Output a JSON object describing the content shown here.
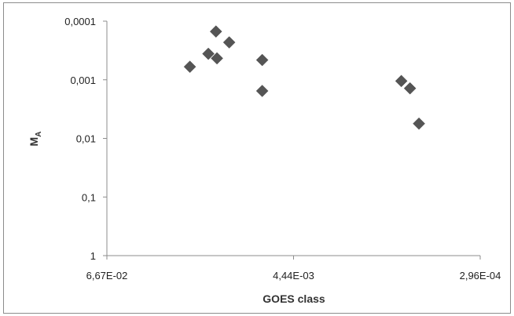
{
  "chart_data": {
    "type": "scatter",
    "title": "",
    "xlabel": "GOES class",
    "ylabel": "M",
    "ylabel_subscript": "A",
    "x_ticks": [
      "6,67E-02",
      "4,44E-03",
      "2,96E-04"
    ],
    "y_ticks": [
      "0,0001",
      "0,001",
      "0,01",
      "0,1",
      "1"
    ],
    "x_scale": "log",
    "x_reversed": true,
    "xlim": [
      0.0667,
      0.000296
    ],
    "y_scale": "log",
    "y_reversed": true,
    "ylim": [
      0.0001,
      1
    ],
    "grid": false,
    "legend": "none",
    "marker": "diamond",
    "colors": {
      "marker": "#555555",
      "axis": "#8c8c8c",
      "text": "#222222"
    },
    "series": [
      {
        "points": [
          {
            "x": 0.02,
            "y": 0.0006
          },
          {
            "x": 0.0153,
            "y": 0.00036
          },
          {
            "x": 0.0137,
            "y": 0.00015
          },
          {
            "x": 0.0135,
            "y": 0.00043
          },
          {
            "x": 0.0113,
            "y": 0.00023
          },
          {
            "x": 0.007,
            "y": 0.00046
          },
          {
            "x": 0.007,
            "y": 0.00155
          },
          {
            "x": 0.00093,
            "y": 0.00105
          },
          {
            "x": 0.00082,
            "y": 0.0014
          },
          {
            "x": 0.00072,
            "y": 0.0056
          }
        ]
      }
    ]
  }
}
